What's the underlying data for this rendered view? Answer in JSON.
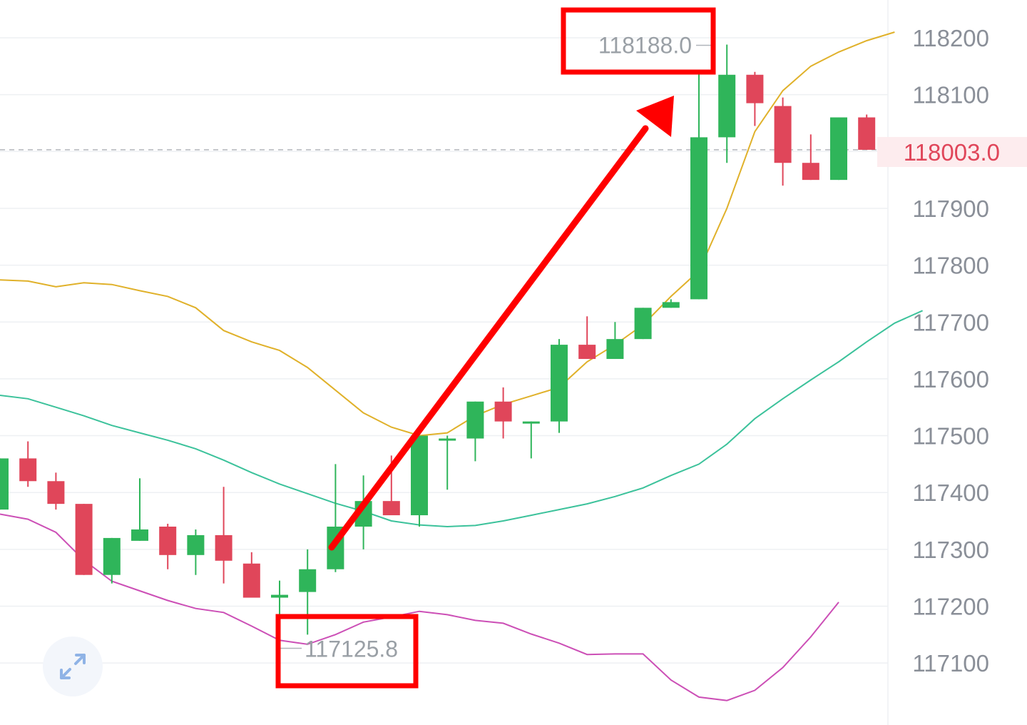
{
  "chart_data": {
    "type": "candlestick",
    "yticks": [
      117100,
      117200,
      117300,
      117400,
      117500,
      117600,
      117700,
      117800,
      117900,
      118000,
      118100,
      118200
    ],
    "ytick_labels": [
      "117100",
      "117200",
      "117300",
      "117400",
      "117500",
      "117600",
      "117700",
      "117800",
      "117900",
      "",
      "118100",
      "118200"
    ],
    "ylim": [
      117035,
      118270
    ],
    "grid": true,
    "last_price": 118003.0,
    "last_price_label": "118003.0",
    "max_label": "118188.0",
    "min_label": "117125.8",
    "candles": [
      {
        "o": 117370,
        "h": 117460,
        "l": 117370,
        "c": 117460
      },
      {
        "o": 117460,
        "h": 117490,
        "l": 117410,
        "c": 117420
      },
      {
        "o": 117420,
        "h": 117435,
        "l": 117370,
        "c": 117380
      },
      {
        "o": 117380,
        "h": 117380,
        "l": 117255,
        "c": 117255
      },
      {
        "o": 117255,
        "h": 117320,
        "l": 117240,
        "c": 117320
      },
      {
        "o": 117315,
        "h": 117425,
        "l": 117315,
        "c": 117335
      },
      {
        "o": 117340,
        "h": 117345,
        "l": 117265,
        "c": 117290
      },
      {
        "o": 117290,
        "h": 117335,
        "l": 117255,
        "c": 117325
      },
      {
        "o": 117325,
        "h": 117410,
        "l": 117240,
        "c": 117280
      },
      {
        "o": 117275,
        "h": 117295,
        "l": 117215,
        "c": 117215
      },
      {
        "o": 117215,
        "h": 117245,
        "l": 117126,
        "c": 117220
      },
      {
        "o": 117225,
        "h": 117300,
        "l": 117150,
        "c": 117265
      },
      {
        "o": 117265,
        "h": 117450,
        "l": 117260,
        "c": 117340
      },
      {
        "o": 117340,
        "h": 117430,
        "l": 117300,
        "c": 117385
      },
      {
        "o": 117385,
        "h": 117465,
        "l": 117360,
        "c": 117360
      },
      {
        "o": 117360,
        "h": 117500,
        "l": 117340,
        "c": 117500
      },
      {
        "o": 117495,
        "h": 117500,
        "l": 117405,
        "c": 117495
      },
      {
        "o": 117495,
        "h": 117560,
        "l": 117455,
        "c": 117560
      },
      {
        "o": 117560,
        "h": 117585,
        "l": 117495,
        "c": 117525
      },
      {
        "o": 117525,
        "h": 117525,
        "l": 117460,
        "c": 117525
      },
      {
        "o": 117525,
        "h": 117670,
        "l": 117505,
        "c": 117660
      },
      {
        "o": 117660,
        "h": 117710,
        "l": 117635,
        "c": 117635
      },
      {
        "o": 117635,
        "h": 117700,
        "l": 117635,
        "c": 117670
      },
      {
        "o": 117670,
        "h": 117725,
        "l": 117670,
        "c": 117725
      },
      {
        "o": 117725,
        "h": 117740,
        "l": 117725,
        "c": 117735
      },
      {
        "o": 117740,
        "h": 118140,
        "l": 117740,
        "c": 118025
      },
      {
        "o": 118025,
        "h": 118188,
        "l": 117980,
        "c": 118135
      },
      {
        "o": 118135,
        "h": 118140,
        "l": 118045,
        "c": 118085
      },
      {
        "o": 118080,
        "h": 118095,
        "l": 117940,
        "c": 117980
      },
      {
        "o": 117980,
        "h": 118030,
        "l": 117950,
        "c": 117950
      },
      {
        "o": 117950,
        "h": 118060,
        "l": 117950,
        "c": 118060
      },
      {
        "o": 118060,
        "h": 118065,
        "l": 118003,
        "c": 118003
      }
    ],
    "series": [
      {
        "color": "#e0b12a",
        "values": [
          117774,
          117772,
          117762,
          117769,
          117766,
          117755,
          117745,
          117725,
          117685,
          117665,
          117650,
          117620,
          117580,
          117540,
          117515,
          117500,
          117505,
          117535,
          117555,
          117570,
          117585,
          117630,
          117660,
          117695,
          117745,
          117790,
          117900,
          118035,
          118107,
          118150,
          118175,
          118195,
          118210
        ]
      },
      {
        "color": "#3cc29b",
        "values": [
          117571,
          117565,
          117550,
          117535,
          117518,
          117505,
          117492,
          117477,
          117457,
          117435,
          117415,
          117398,
          117381,
          117367,
          117350,
          117343,
          117340,
          117342,
          117350,
          117360,
          117370,
          117380,
          117393,
          117408,
          117430,
          117450,
          117485,
          117530,
          117565,
          117598,
          117630,
          117665,
          117698,
          117720
        ]
      },
      {
        "color": "#cc4fb6",
        "values": [
          117362,
          117353,
          117330,
          117281,
          117244,
          117227,
          117210,
          117196,
          117189,
          117165,
          117140,
          117133,
          117150,
          117172,
          117181,
          117191,
          117185,
          117175,
          117170,
          117151,
          117135,
          117115,
          117116,
          117116,
          117070,
          117040,
          117034,
          117052,
          117092,
          117146,
          117207
        ]
      }
    ],
    "colors": {
      "up": "#2fb55a",
      "down": "#e0465a",
      "arrow": "#ff0000",
      "box": "#ff0000"
    }
  },
  "ui": {
    "expand_icon": "expand-arrows-icon"
  }
}
